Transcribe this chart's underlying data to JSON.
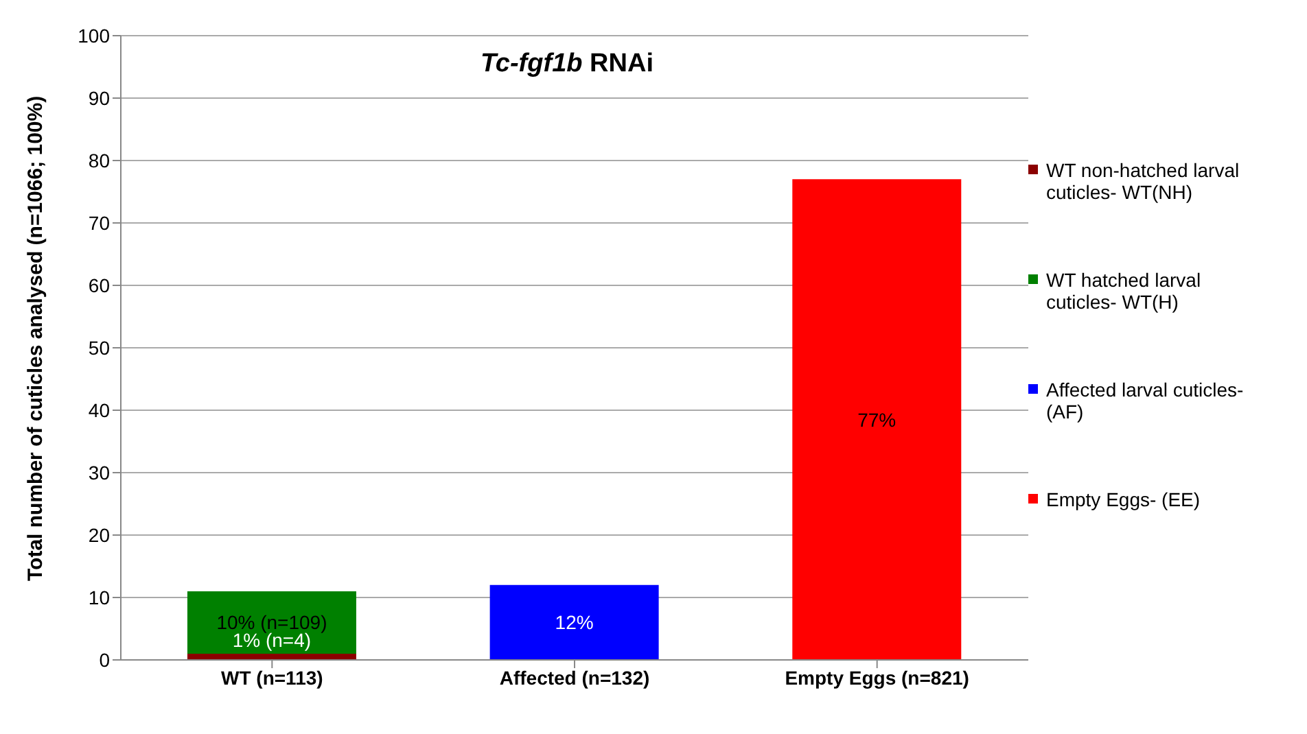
{
  "chart_data": {
    "type": "bar",
    "title": "Tc-fgf1b RNAi",
    "ylabel": "Total number of cuticles analysed (n=1066; 100%)",
    "categories": [
      "WT (n=113)",
      "Affected (n=132)",
      "Empty Eggs (n=821)"
    ],
    "stacked": true,
    "series": [
      {
        "name": "WT non-hatched larval cuticles- WT(NH)",
        "color": "#8b0000",
        "values": [
          1,
          null,
          null
        ],
        "value_labels": [
          "1% (n=4)",
          null,
          null
        ]
      },
      {
        "name": "WT hatched larval cuticles- WT(H)",
        "color": "#008000",
        "values": [
          10,
          null,
          null
        ],
        "value_labels": [
          "10% (n=109)",
          null,
          null
        ]
      },
      {
        "name": "Affected larval cuticles- (AF)",
        "color": "#0000ff",
        "values": [
          null,
          12,
          null
        ],
        "value_labels": [
          null,
          "12%",
          null
        ]
      },
      {
        "name": "Empty Eggs- (EE)",
        "color": "#ff0000",
        "values": [
          null,
          null,
          77
        ],
        "value_labels": [
          null,
          null,
          "77%"
        ]
      }
    ],
    "ylim": [
      0,
      100
    ],
    "yticks": [
      0,
      10,
      20,
      30,
      40,
      50,
      60,
      70,
      80,
      90,
      100
    ],
    "grid": "y",
    "legend": "right"
  }
}
